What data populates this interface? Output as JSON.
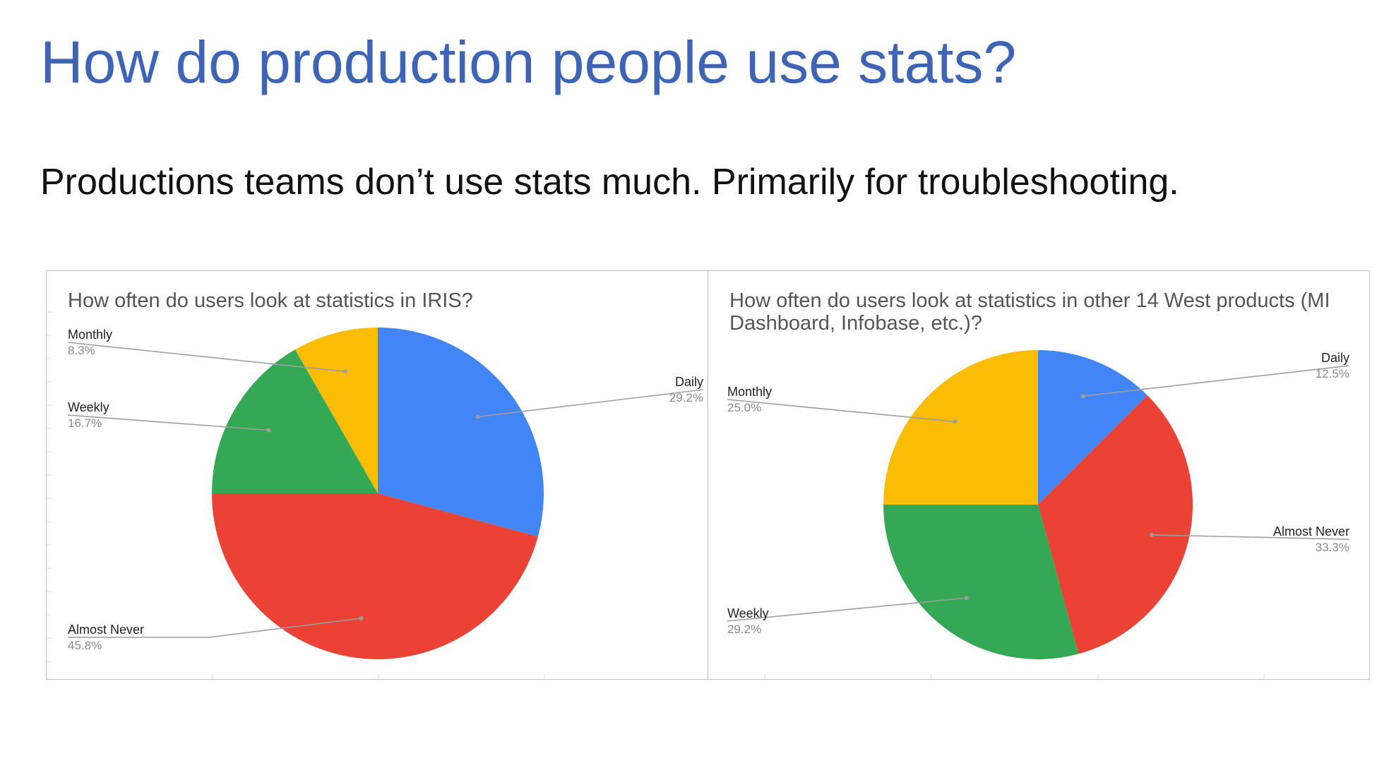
{
  "slide": {
    "title": "How do production people use stats?",
    "subtitle": "Productions teams don’t use stats much.  Primarily for troubleshooting."
  },
  "colors": {
    "title": "#3e64b5",
    "daily": "#4285f4",
    "almost_never": "#ea4335",
    "weekly": "#34a853",
    "monthly": "#fbbc04"
  },
  "chart_data": [
    {
      "type": "pie",
      "title": "How often do users look at statistics in IRIS?",
      "slices": [
        {
          "label": "Daily",
          "value": 29.2,
          "display": "29.2%",
          "color": "#4285f4"
        },
        {
          "label": "Almost Never",
          "value": 45.8,
          "display": "45.8%",
          "color": "#ea4335"
        },
        {
          "label": "Weekly",
          "value": 16.7,
          "display": "16.7%",
          "color": "#34a853"
        },
        {
          "label": "Monthly",
          "value": 8.3,
          "display": "8.3%",
          "color": "#fbbc04"
        }
      ]
    },
    {
      "type": "pie",
      "title": "How often do users look at statistics in other 14 West products (MI Dashboard, Infobase, etc.)?",
      "slices": [
        {
          "label": "Daily",
          "value": 12.5,
          "display": "12.5%",
          "color": "#4285f4"
        },
        {
          "label": "Almost Never",
          "value": 33.3,
          "display": "33.3%",
          "color": "#ea4335"
        },
        {
          "label": "Weekly",
          "value": 29.2,
          "display": "29.2%",
          "color": "#34a853"
        },
        {
          "label": "Monthly",
          "value": 25.0,
          "display": "25.0%",
          "color": "#fbbc04"
        }
      ]
    }
  ]
}
